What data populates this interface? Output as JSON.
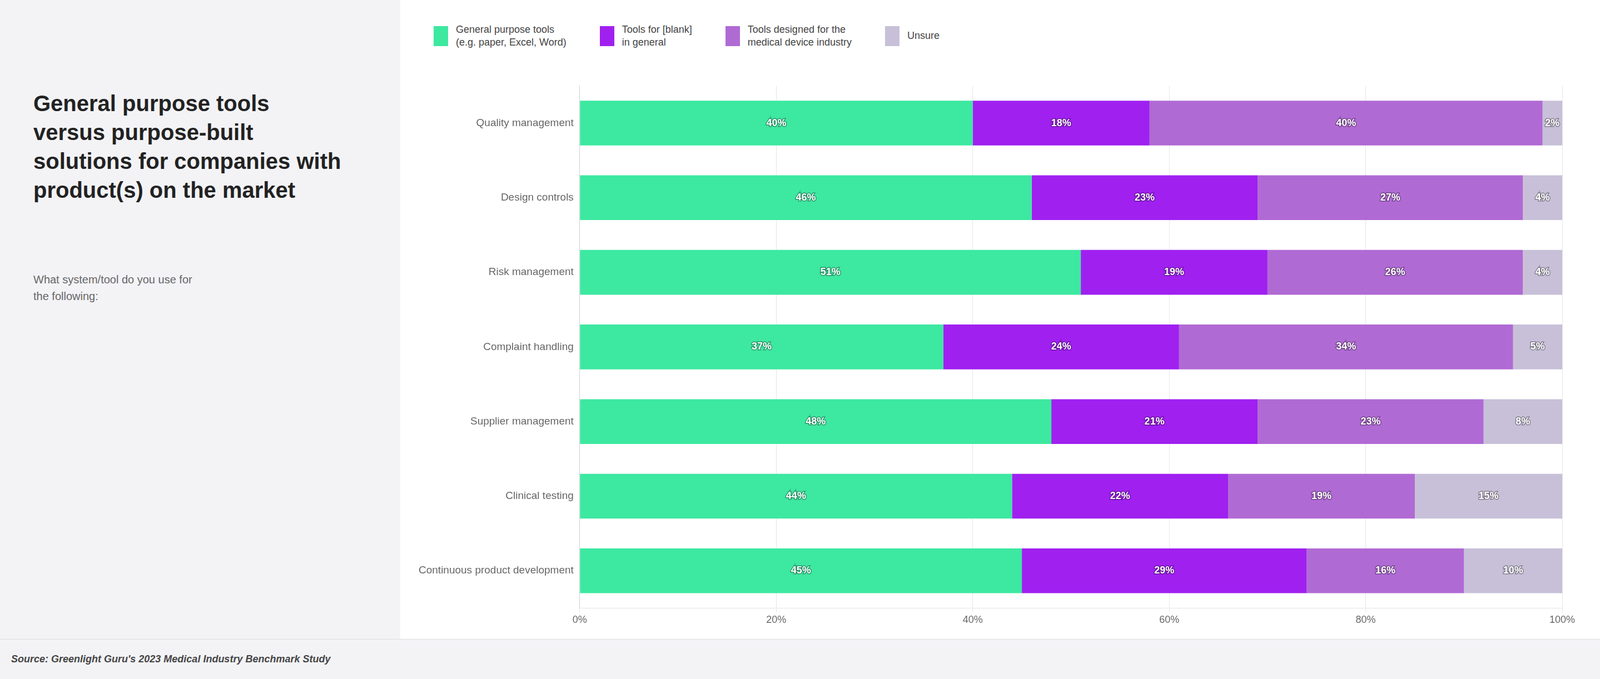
{
  "chart_data": {
    "type": "bar",
    "orientation": "horizontal",
    "stacked": true,
    "title": "General purpose tools\nversus purpose-built\nsolutions for companies with\nproduct(s) on the market",
    "subtitle": "What system/tool do you use for\nthe following:",
    "annotations": [
      "Source: Greenlight Guru's 2023 Medical Industry Benchmark Study"
    ],
    "categories": [
      "Quality management",
      "Design controls",
      "Risk management",
      "Complaint handling",
      "Supplier management",
      "Clinical testing",
      "Continuous product development"
    ],
    "series": [
      {
        "name": "General purpose tools\n(e.g. paper, Excel, Word)",
        "color": "#3de8a0",
        "values": [
          40,
          46,
          51,
          37,
          48,
          44,
          45
        ],
        "value_labels": [
          "40%",
          "46%",
          "51%",
          "37%",
          "48%",
          "44%",
          "45%"
        ]
      },
      {
        "name": "Tools for [blank]\nin general",
        "color": "#a020f0",
        "values": [
          18,
          23,
          19,
          24,
          21,
          22,
          29
        ],
        "value_labels": [
          "18%",
          "23%",
          "19%",
          "24%",
          "21%",
          "22%",
          "29%"
        ]
      },
      {
        "name": "Tools designed for the\nmedical device industry",
        "color": "#b06ad4",
        "values": [
          40,
          27,
          26,
          34,
          23,
          19,
          16
        ],
        "value_labels": [
          "40%",
          "27%",
          "26%",
          "34%",
          "23%",
          "19%",
          "16%"
        ]
      },
      {
        "name": "Unsure",
        "color": "#c8c0d8",
        "values": [
          2,
          4,
          4,
          5,
          8,
          15,
          10
        ],
        "value_labels": [
          "2%",
          "4%",
          "4%",
          "5%",
          "8%",
          "15%",
          "10%"
        ]
      }
    ],
    "xlim": [
      0,
      100
    ],
    "xticks": [
      {
        "value": 0,
        "label": "0%"
      },
      {
        "value": 20,
        "label": "20%"
      },
      {
        "value": 40,
        "label": "40%"
      },
      {
        "value": 60,
        "label": "60%"
      },
      {
        "value": 80,
        "label": "80%"
      },
      {
        "value": 100,
        "label": "100%"
      }
    ],
    "grid": true,
    "legend": "top",
    "data_labels": true
  }
}
